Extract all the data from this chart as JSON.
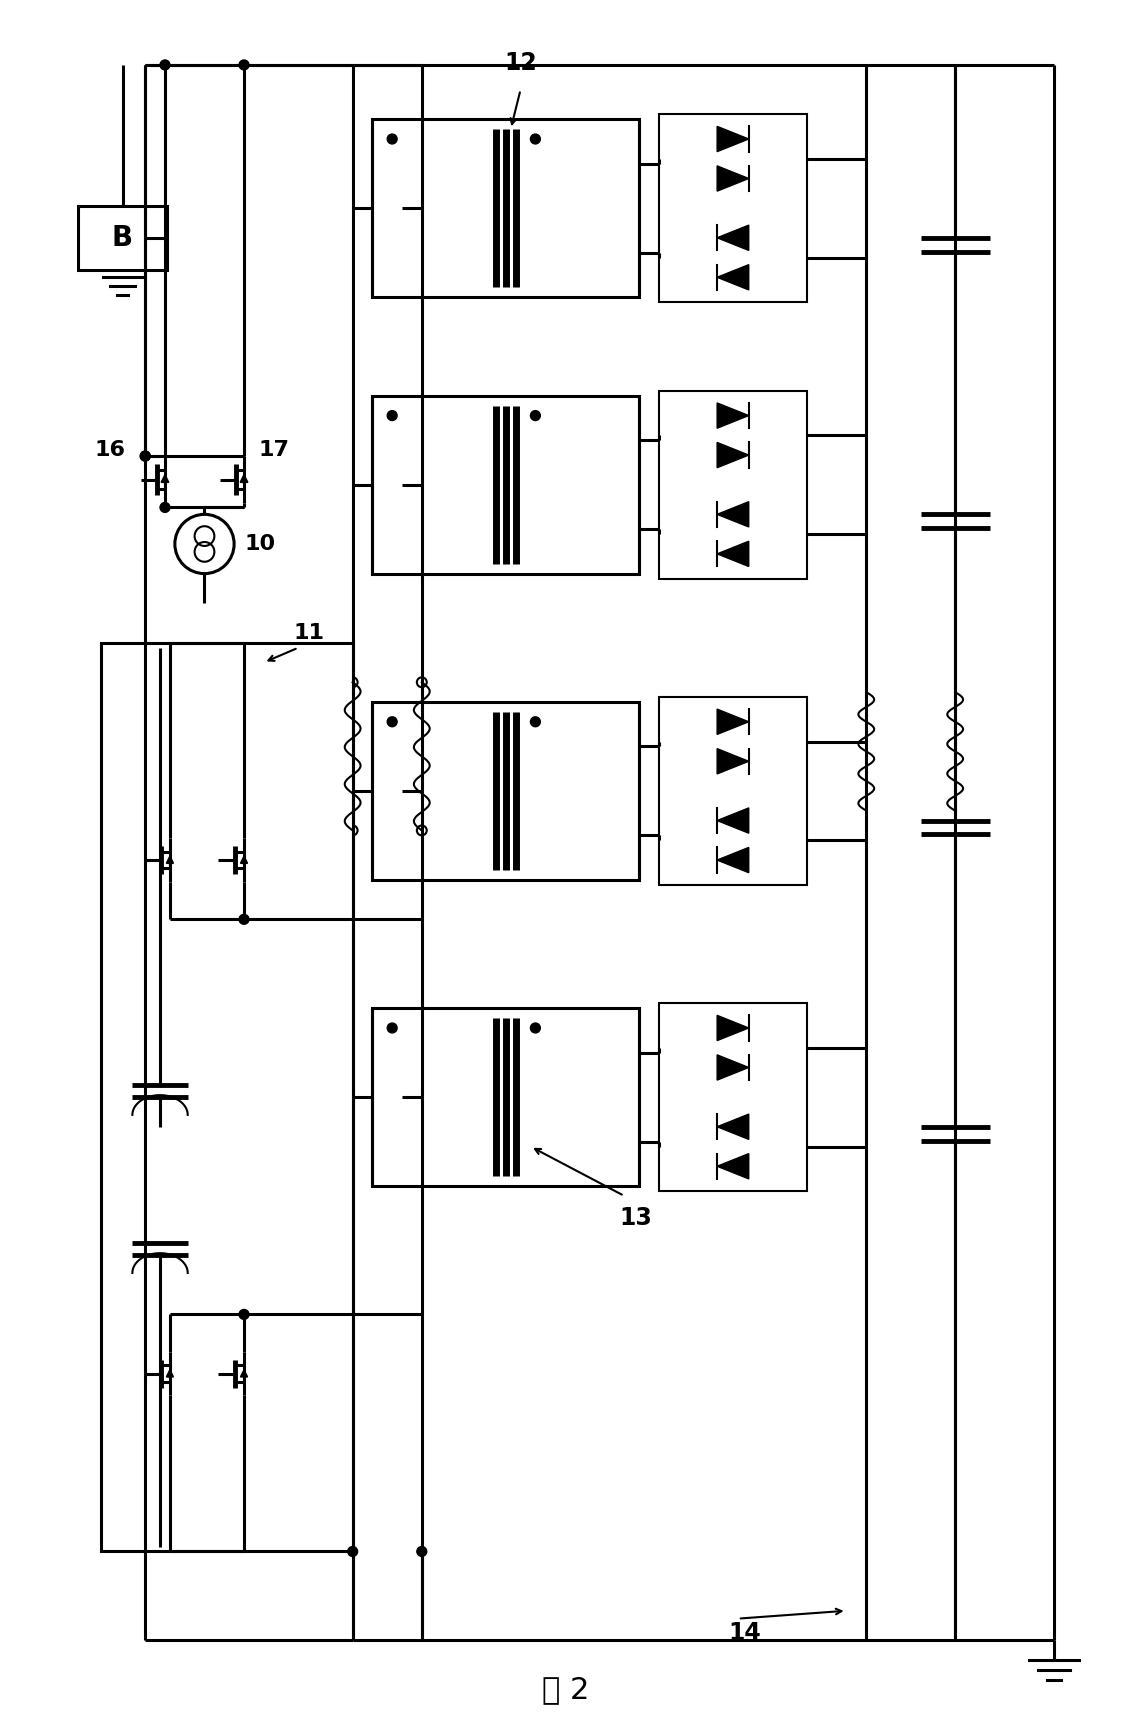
{
  "title": "图 2",
  "bg": "#ffffff",
  "lc": "#000000",
  "fig_w": 11.33,
  "fig_h": 17.29,
  "dpi": 100
}
